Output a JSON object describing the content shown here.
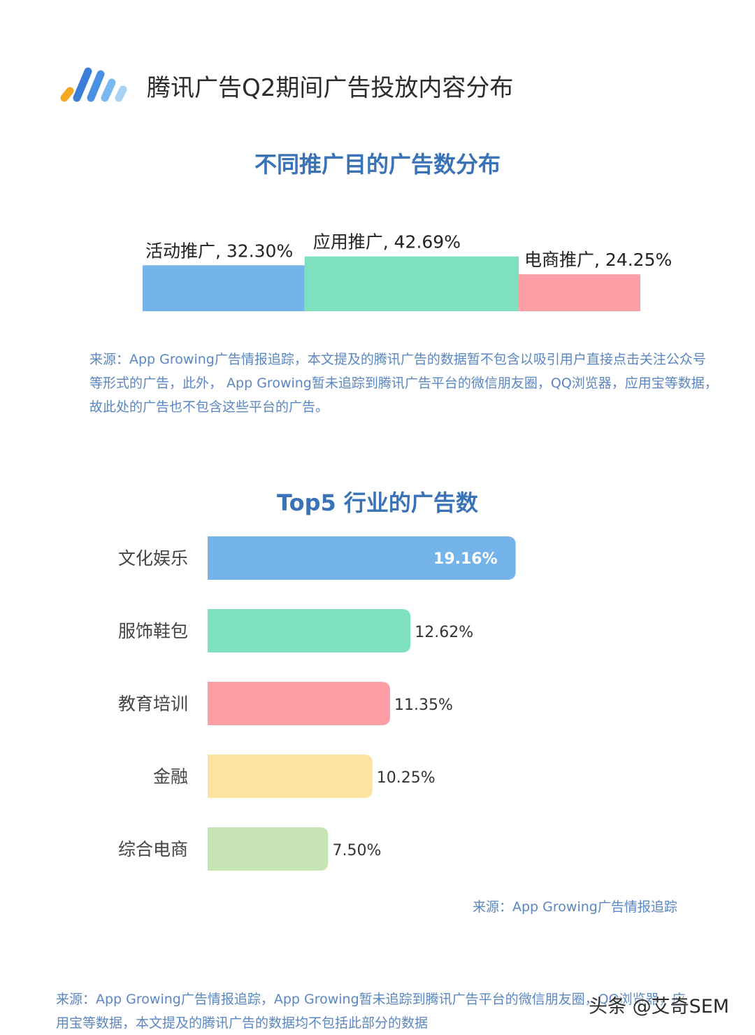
{
  "header": {
    "title": "腾讯广告Q2期间广告投放内容分布",
    "logo_colors": [
      "#f5a623",
      "#3b7dd8",
      "#4a90e2",
      "#79b8f0"
    ]
  },
  "colors": {
    "title_blue": "#3a72b8",
    "note_blue": "#5a86c2",
    "series": [
      "#74b4ea",
      "#7fe0bf",
      "#fd9ea7",
      "#fde3a2",
      "#c6e4b4"
    ]
  },
  "chart_data": [
    {
      "type": "bar",
      "orientation": "horizontal-stacked",
      "title": "不同推广目的广告数分布",
      "categories": [
        "活动推广",
        "应用推广",
        "电商推广"
      ],
      "values": [
        32.3,
        42.69,
        24.25
      ],
      "labels": [
        "活动推广, 32.30%",
        "应用推广, 42.69%",
        "电商推广, 24.25%"
      ],
      "unit": "%"
    },
    {
      "type": "bar",
      "orientation": "horizontal",
      "title": "Top5 行业的广告数",
      "categories": [
        "文化娱乐",
        "服饰鞋包",
        "教育培训",
        "金融",
        "综合电商"
      ],
      "values": [
        19.16,
        12.62,
        11.35,
        10.25,
        7.5
      ],
      "labels": [
        "19.16%",
        "12.62%",
        "11.35%",
        "10.25%",
        "7.50%"
      ],
      "unit": "%"
    }
  ],
  "note1": {
    "lines": [
      "来源：App Growing广告情报追踪，本文提及的腾讯广告的数据暂不包含以吸引用户直接点击关注公众号",
      "等形式的广告，此外， App Growing暂未追踪到腾讯广告平台的微信朋友圈，QQ浏览器，应用宝等数据，",
      "故此处的广告也不包含这些平台的广告。"
    ]
  },
  "source2": "来源：App Growing广告情报追踪",
  "note2": {
    "lines": [
      "来源：App Growing广告情报追踪，App Growing暂未追踪到腾讯广告平台的微信朋友圈，QQ浏览器，应",
      "用宝等数据，本文提及的腾讯广告的数据均不包括此部分的数据"
    ]
  },
  "watermark": "头条 @艾奇SEM"
}
